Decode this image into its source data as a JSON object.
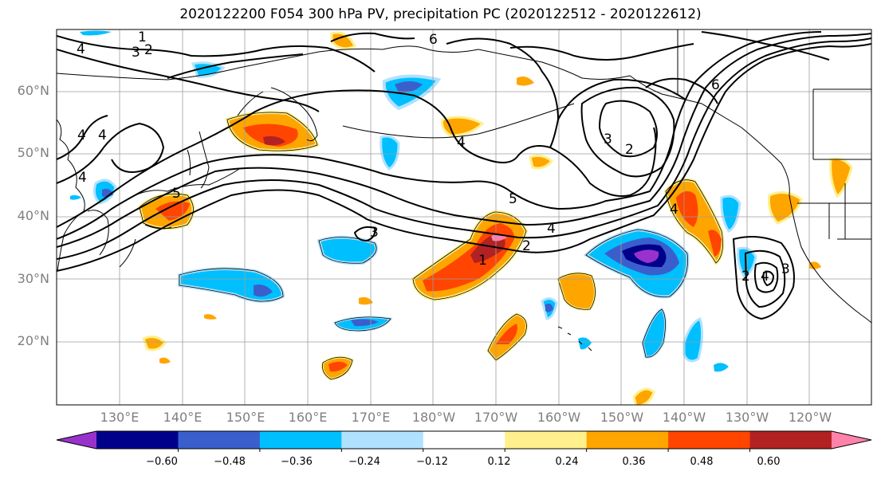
{
  "title": "2020122200 F054 300 hPa PV, precipitation PC (2020122512 - 2020122612)",
  "lat_labels": [
    "60°N",
    "50°N",
    "40°N",
    "30°N",
    "20°N"
  ],
  "lon_labels": [
    "130°E",
    "140°E",
    "150°E",
    "160°E",
    "170°E",
    "180°W",
    "170°W",
    "160°W",
    "150°W",
    "140°W",
    "130°W",
    "120°W"
  ],
  "colorbar": {
    "colors": [
      "#9932cc",
      "#00008b",
      "#3a5fcd",
      "#00bfff",
      "#b0e2ff",
      "#ffffff",
      "#fff08c",
      "#ffa500",
      "#ff4500",
      "#b22222",
      "#ff82ab"
    ],
    "tick_labels": [
      "−0.60",
      "−0.48",
      "−0.36",
      "−0.24",
      "−0.12",
      "0.12",
      "0.24",
      "0.36",
      "0.48",
      "0.60"
    ]
  },
  "contour_labels": [
    "1",
    "3",
    "2",
    "4",
    "6",
    "4",
    "4",
    "4",
    "5",
    "4",
    "3",
    "2",
    "1",
    "5",
    "3",
    "4",
    "3",
    "2",
    "6",
    "4",
    "2",
    "4"
  ]
}
